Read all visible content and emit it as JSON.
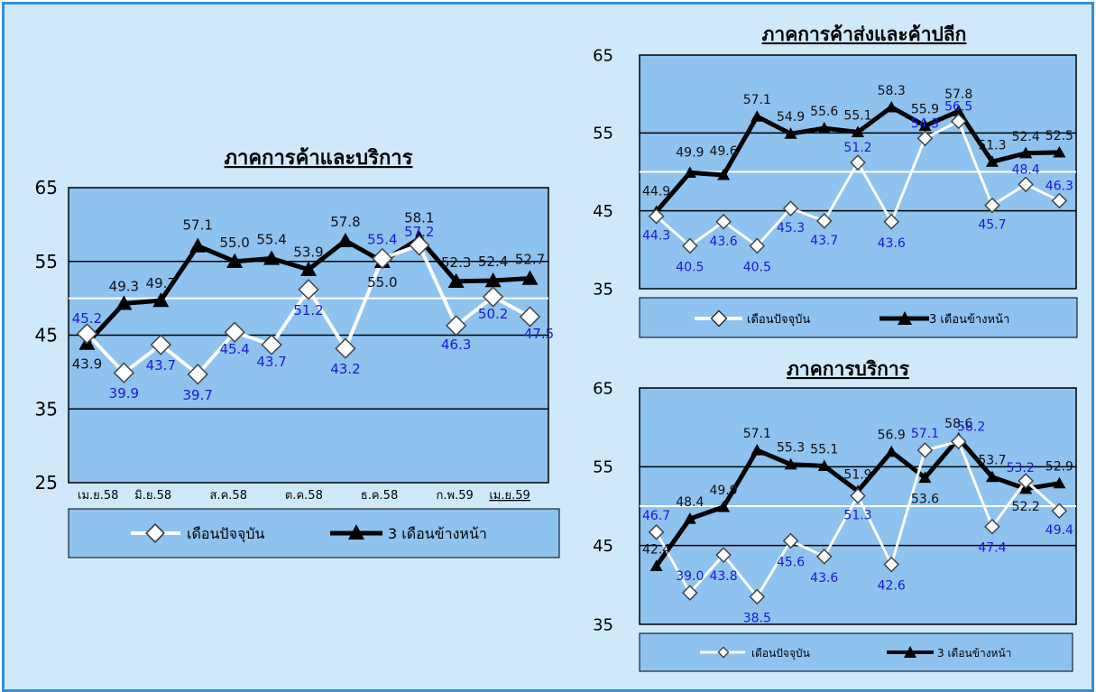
{
  "chart_data": [
    {
      "id": "left",
      "type": "line",
      "title": "ภาคการค้าและบริการ",
      "ylim": [
        25,
        65
      ],
      "yticks": [
        25,
        35,
        45,
        55,
        65
      ],
      "x_tick_labels": [
        "เม.ย.58",
        "มิ.ย.58",
        "ส.ค.58",
        "ต.ค.58",
        "ธ.ค.58",
        "ก.พ.59",
        "เม.ย.59"
      ],
      "highlight_tick": "เม.ย.59",
      "reference_line": 50,
      "series": [
        {
          "name": "เดือนปัจจุบัน",
          "values": [
            45.2,
            39.9,
            43.7,
            39.7,
            45.4,
            43.7,
            51.2,
            43.2,
            55.4,
            57.2,
            46.3,
            50.2,
            47.5
          ]
        },
        {
          "name": "3 เดือนข้างหน้า",
          "values": [
            43.9,
            49.3,
            49.7,
            57.1,
            55.0,
            55.4,
            53.9,
            57.8,
            55.0,
            58.1,
            52.3,
            52.4,
            52.7
          ]
        }
      ]
    },
    {
      "id": "wholesale",
      "type": "line",
      "title": "ภาคการค้าส่งและค้าปลีก",
      "ylim": [
        35,
        65
      ],
      "yticks": [
        35,
        45,
        55,
        65
      ],
      "reference_line": 50,
      "series": [
        {
          "name": "เดือนปัจจุบัน",
          "values": [
            44.3,
            40.5,
            43.6,
            40.5,
            45.3,
            43.7,
            51.2,
            43.6,
            54.3,
            56.5,
            45.7,
            48.4,
            46.3
          ]
        },
        {
          "name": "3 เดือนข้างหน้า",
          "values": [
            44.9,
            49.9,
            49.6,
            57.1,
            54.9,
            55.6,
            55.1,
            58.3,
            55.9,
            57.8,
            51.3,
            52.4,
            52.5
          ]
        }
      ]
    },
    {
      "id": "service",
      "type": "line",
      "title": "ภาคการบริการ",
      "ylim": [
        35,
        65
      ],
      "yticks": [
        35,
        45,
        55,
        65
      ],
      "reference_line": 50,
      "series": [
        {
          "name": "เดือนปัจจุบัน",
          "values": [
            46.7,
            39.0,
            43.8,
            38.5,
            45.6,
            43.6,
            51.3,
            42.6,
            57.1,
            58.2,
            47.4,
            53.2,
            49.4
          ]
        },
        {
          "name": "3 เดือนข้างหน้า",
          "values": [
            42.4,
            48.4,
            49.9,
            57.1,
            55.3,
            55.1,
            51.9,
            56.9,
            53.6,
            58.6,
            53.7,
            52.2,
            52.9
          ]
        }
      ]
    }
  ],
  "legend": {
    "current": "เดือนปัจจุบัน",
    "next3": "3 เดือนข้างหน้า",
    "current_small": "เดือนปัจจุบัน",
    "next3_small": "3 เดือนข้างหน้า"
  },
  "colors": {
    "background": "#cfe9fb",
    "plot": "#8ec2ef",
    "current_line": "#ffffff",
    "next3_line": "#000000",
    "current_labels": "#1a1adb",
    "border": "#2f8fdf"
  }
}
